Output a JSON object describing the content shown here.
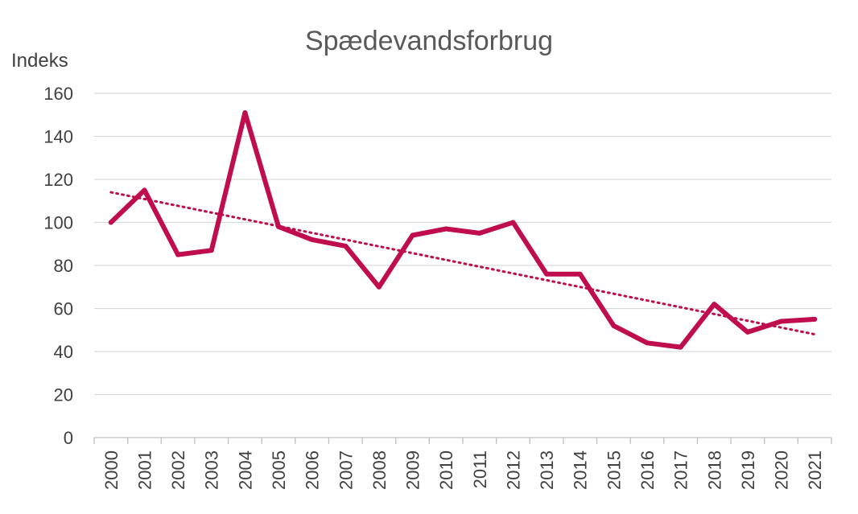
{
  "chart_data": {
    "type": "line",
    "title": "Spædevandsforbrug",
    "ylabel": "Indeks",
    "xlabel": "",
    "ylim": [
      0,
      160
    ],
    "yticks": [
      0,
      20,
      40,
      60,
      80,
      100,
      120,
      140,
      160
    ],
    "grid": true,
    "legend": "none",
    "categories": [
      "2000",
      "2001",
      "2002",
      "2003",
      "2004",
      "2005",
      "2006",
      "2007",
      "2008",
      "2009",
      "2010",
      "2011",
      "2012",
      "2013",
      "2014",
      "2015",
      "2016",
      "2017",
      "2018",
      "2019",
      "2020",
      "2021"
    ],
    "series": [
      {
        "values": [
          100,
          115,
          85,
          87,
          151,
          98,
          92,
          89,
          70,
          94,
          97,
          95,
          100,
          76,
          76,
          52,
          44,
          42,
          62,
          49,
          54,
          55
        ],
        "color": "#C00D4E",
        "style": "solid"
      }
    ],
    "trendline": {
      "type": "linear",
      "start": 114,
      "end": 48,
      "color": "#C00D4E",
      "style": "dotted"
    }
  }
}
